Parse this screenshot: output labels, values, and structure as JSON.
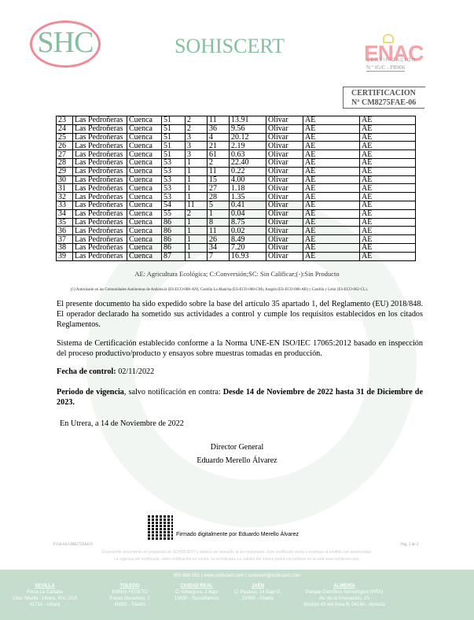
{
  "header": {
    "logo_text": "SHC",
    "brand": "SOHISCERT",
    "enac": {
      "logo_text": "ENAC",
      "subtitle": "CERTIFICACION",
      "number": "N.º 05/C - PR006"
    },
    "cert_label": "CERTIFICACION",
    "cert_number": "Nº CM8275FAE-06"
  },
  "table": {
    "rows": [
      [
        "23",
        "Las Pedroñeras",
        "Cuenca",
        "51",
        "2",
        "11",
        "13.91",
        "Olivar",
        "AE",
        "AE"
      ],
      [
        "24",
        "Las Pedroñeras",
        "Cuenca",
        "51",
        "2",
        "36",
        "9.56",
        "Olivar",
        "AE",
        "AE"
      ],
      [
        "25",
        "Las Pedroñeras",
        "Cuenca",
        "51",
        "3",
        "4",
        "20.12",
        "Olivar",
        "AE",
        "AE"
      ],
      [
        "26",
        "Las Pedroñeras",
        "Cuenca",
        "51",
        "3",
        "21",
        "2.19",
        "Olivar",
        "AE",
        "AE"
      ],
      [
        "27",
        "Las Pedroñeras",
        "Cuenca",
        "51",
        "3",
        "61",
        "0.63",
        "Olivar",
        "AE",
        "AE"
      ],
      [
        "28",
        "Las Pedroñeras",
        "Cuenca",
        "53",
        "1",
        "2",
        "22.40",
        "Olivar",
        "AE",
        "AE"
      ],
      [
        "29",
        "Las Pedroñeras",
        "Cuenca",
        "53",
        "1",
        "11",
        "0.22",
        "Olivar",
        "AE",
        "AE"
      ],
      [
        "30",
        "Las Pedroñeras",
        "Cuenca",
        "53",
        "1",
        "15",
        "4.00",
        "Olivar",
        "AE",
        "AE"
      ],
      [
        "31",
        "Las Pedroñeras",
        "Cuenca",
        "53",
        "1",
        "27",
        "1.18",
        "Olivar",
        "AE",
        "AE"
      ],
      [
        "32",
        "Las Pedroñeras",
        "Cuenca",
        "53",
        "1",
        "28",
        "1.35",
        "Olivar",
        "AE",
        "AE"
      ],
      [
        "33",
        "Las Pedroñeras",
        "Cuenca",
        "54",
        "11",
        "5",
        "0.41",
        "Olivar",
        "AE",
        "AE"
      ],
      [
        "34",
        "Las Pedroñeras",
        "Cuenca",
        "55",
        "2",
        "1",
        "0.04",
        "Olivar",
        "AE",
        "AE"
      ],
      [
        "35",
        "Las Pedroñeras",
        "Cuenca",
        "86",
        "1",
        "8",
        "8.75",
        "Olivar",
        "AE",
        "AE"
      ],
      [
        "36",
        "Las Pedroñeras",
        "Cuenca",
        "86",
        "1",
        "11",
        "0.02",
        "Olivar",
        "AE",
        "AE"
      ],
      [
        "37",
        "Las Pedroñeras",
        "Cuenca",
        "86",
        "1",
        "26",
        "8.49",
        "Olivar",
        "AE",
        "AE"
      ],
      [
        "38",
        "Las Pedroñeras",
        "Cuenca",
        "86",
        "1",
        "34",
        "7.20",
        "Olivar",
        "AE",
        "AE"
      ],
      [
        "39",
        "Las Pedroñeras",
        "Cuenca",
        "87",
        "1",
        "7",
        "16.93",
        "Olivar",
        "AE",
        "AE"
      ]
    ]
  },
  "legend": "AE: Agricultura Ecológica; C:Conversión;SC: Sin Calificar;(-):Sin Producto",
  "footnote": "(1)    Autorizado en las Comunidades Autónomas de Andalucía (ES-ECO-008-AN), Castilla La Mancha (ES-ECO-008-CM), Aragón (ES-ECO-008-AR) y Castilla y León (ES-ECO-002-CL).",
  "body": {
    "p1": "El presente documento ha sido expedido sobre la base del artículo 35 apartado 1, del Reglamento (EU) 2018/848. El operador declarado ha sometido sus actividades a control y cumple los requisitos establecidos en los citados Reglamentos.",
    "p2": "Sistema de Certificación establecido conforme a la Norma UNE-EN ISO/IEC 17065:2012 basado en inspección del proceso productivo/producto y ensayos sobre muestras tomadas en producción.",
    "control_label": "Fecha de control:",
    "control_date": " 02/11/2022",
    "validity_label": "Periodo de vigencia",
    "validity_mid": ", salvo notificación en contra: ",
    "validity_value": "Desde 14 de Noviembre de 2022 hasta 31 de Diciembre de 2023.",
    "place_date": "En Utrera, a 14 de Noviembre de 2022",
    "signer_title": "Director  General",
    "signer_name": "Eduardo Merello Álvarez"
  },
  "signature": {
    "signed_text": "Firmado digitalmente por Eduardo Merello Álvarez"
  },
  "footer": {
    "ref": "F156-04-CM8275FAE-0",
    "page": "Pag. 2 de 2",
    "legal1": "El presente documento es propiedad de SOHISCERT y deberá ser devuelto al ser reclamado. Este certificado anula y sustituye al emitido con anterioridad.",
    "legal2": "La vigencia del certificado, salvo notificación en contra, es la indicada. La validez del mismo podrá consultarse en la web www.sohiscert.com.",
    "contact": "955 868 051 | www.sohiscert.com | sohiscert@sohiscert.com",
    "offices": [
      {
        "city": "SEVILLA",
        "lines": [
          "Finca La Cañada",
          "Ctra. Sevilla - Utrera, Km. 20,8",
          "41710 - Utrera"
        ]
      },
      {
        "city": "TOLEDO",
        "lines": [
          "Edificio FEDETO",
          "Paseo Recadero, 1",
          "45002 - Toledo"
        ]
      },
      {
        "city": "CIUDAD REAL",
        "lines": [
          "C/ Amargura, 2-bajo",
          "13630 - Socuéllamos"
        ]
      },
      {
        "city": "JAÉN",
        "lines": [
          "C/ Picasso, 14 Bajo Iz.",
          "23400 - Úbeda"
        ]
      },
      {
        "city": "ALMERÍA",
        "lines": [
          "Parque Científico-Tecnológico (PITA)",
          "Av. de la Innovación, 15",
          "Módulo 43 del Área B. 04160 - Almería"
        ]
      }
    ]
  },
  "colors": {
    "brand_green": "#84bfa0",
    "logo_pink": "#f08a96",
    "footer_band": "#c5ddcc"
  }
}
